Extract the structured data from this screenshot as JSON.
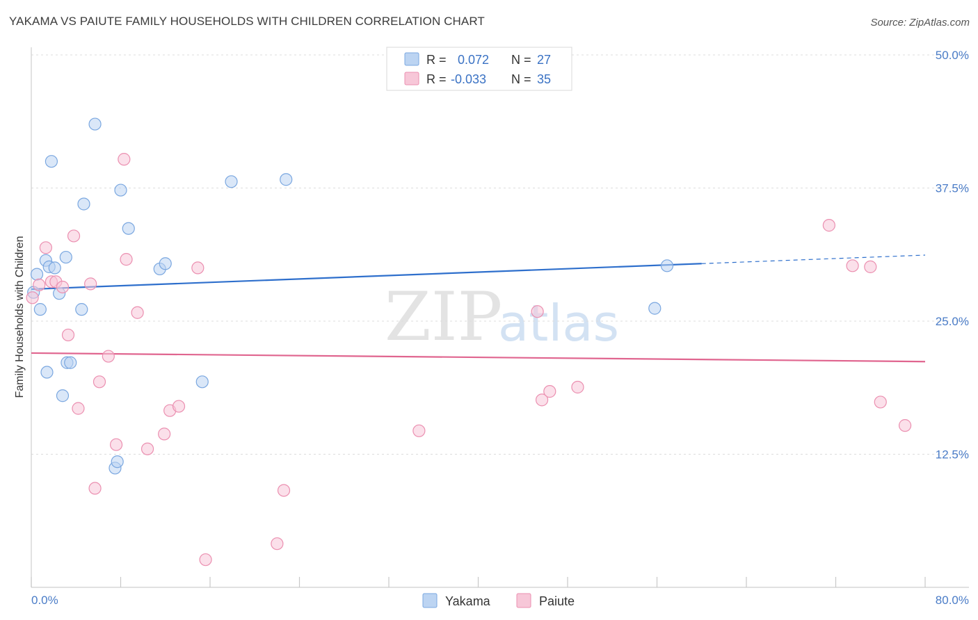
{
  "header": {
    "title": "YAKAMA VS PAIUTE FAMILY HOUSEHOLDS WITH CHILDREN CORRELATION CHART",
    "source": "Source: ZipAtlas.com"
  },
  "watermark": {
    "zip": "ZIP",
    "atlas": "atlas"
  },
  "legend": {
    "rows": [
      {
        "r_label": "R =",
        "r_value": "0.072",
        "n_label": "N =",
        "n_value": "27"
      },
      {
        "r_label": "R =",
        "r_value": "-0.033",
        "n_label": "N =",
        "n_value": "35"
      }
    ]
  },
  "chart_data": {
    "type": "scatter",
    "title": "YAKAMA VS PAIUTE FAMILY HOUSEHOLDS WITH CHILDREN CORRELATION CHART",
    "xlabel": "",
    "ylabel": "Family Households with Children",
    "xlim": [
      0,
      80
    ],
    "ylim": [
      0,
      50
    ],
    "x_tick_labels": [
      "0.0%",
      "80.0%"
    ],
    "y_ticks": [
      12.5,
      25.0,
      37.5,
      50.0
    ],
    "y_tick_labels": [
      "12.5%",
      "25.0%",
      "37.5%",
      "50.0%"
    ],
    "legend_position": "top-center",
    "series": [
      {
        "name": "Yakama",
        "color": "#7aa7e0",
        "fill": "#bcd4f2",
        "trend": {
          "x0": 0,
          "y0": 28.0,
          "x1": 60,
          "y1": 30.4,
          "dash_x1": 80,
          "dash_y1": 31.2,
          "color": "#2e6fcc"
        },
        "points": [
          [
            0.2,
            27.7
          ],
          [
            0.5,
            29.4
          ],
          [
            0.8,
            26.1
          ],
          [
            1.3,
            30.7
          ],
          [
            1.6,
            30.1
          ],
          [
            1.8,
            40.0
          ],
          [
            2.1,
            30.0
          ],
          [
            2.5,
            27.6
          ],
          [
            2.8,
            18.0
          ],
          [
            3.1,
            31.0
          ],
          [
            3.2,
            21.1
          ],
          [
            3.5,
            21.1
          ],
          [
            1.4,
            20.2
          ],
          [
            4.5,
            26.1
          ],
          [
            4.7,
            36.0
          ],
          [
            5.7,
            43.5
          ],
          [
            7.5,
            11.2
          ],
          [
            7.7,
            11.8
          ],
          [
            8.0,
            37.3
          ],
          [
            8.7,
            33.7
          ],
          [
            11.5,
            29.9
          ],
          [
            12.0,
            30.4
          ],
          [
            15.3,
            19.3
          ],
          [
            17.9,
            38.1
          ],
          [
            22.8,
            38.3
          ],
          [
            55.8,
            26.2
          ],
          [
            56.9,
            30.2
          ]
        ]
      },
      {
        "name": "Paiute",
        "color": "#eb8fb0",
        "fill": "#f7c7d8",
        "trend": {
          "x0": 0,
          "y0": 22.0,
          "x1": 80,
          "y1": 21.2,
          "color": "#e0658f"
        },
        "points": [
          [
            0.1,
            27.2
          ],
          [
            0.7,
            28.4
          ],
          [
            1.3,
            31.9
          ],
          [
            1.8,
            28.7
          ],
          [
            2.2,
            28.7
          ],
          [
            2.8,
            28.2
          ],
          [
            3.3,
            23.7
          ],
          [
            3.8,
            33.0
          ],
          [
            4.2,
            16.8
          ],
          [
            5.3,
            28.5
          ],
          [
            5.7,
            9.3
          ],
          [
            6.1,
            19.3
          ],
          [
            6.9,
            21.7
          ],
          [
            7.6,
            13.4
          ],
          [
            8.3,
            40.2
          ],
          [
            8.5,
            30.8
          ],
          [
            9.5,
            25.8
          ],
          [
            10.4,
            13.0
          ],
          [
            11.9,
            14.4
          ],
          [
            12.4,
            16.6
          ],
          [
            13.2,
            17.0
          ],
          [
            14.9,
            30.0
          ],
          [
            15.6,
            2.6
          ],
          [
            22.0,
            4.1
          ],
          [
            22.6,
            9.1
          ],
          [
            34.7,
            14.7
          ],
          [
            45.3,
            25.9
          ],
          [
            45.7,
            17.6
          ],
          [
            46.4,
            18.4
          ],
          [
            48.9,
            18.8
          ],
          [
            71.4,
            34.0
          ],
          [
            73.5,
            30.2
          ],
          [
            75.1,
            30.1
          ],
          [
            76.0,
            17.4
          ],
          [
            78.2,
            15.2
          ]
        ]
      }
    ]
  }
}
